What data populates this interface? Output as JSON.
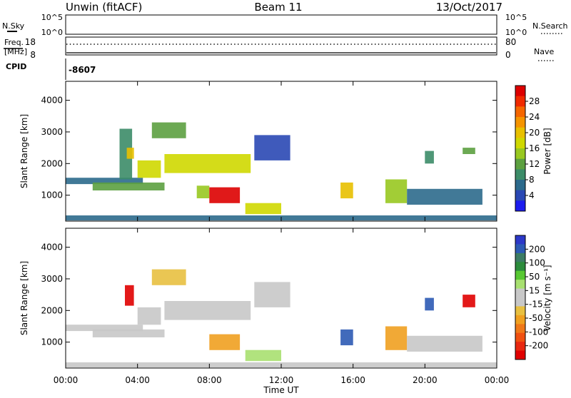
{
  "header": {
    "radar_name": "Unwin (fitACF)",
    "beam": "Beam 11",
    "date": "13/Oct/2017"
  },
  "strip_panels": {
    "nsky_label": "N.Sky",
    "nsky_ticks": [
      "10^5",
      "10^0"
    ],
    "nsearch_label": "N.Search",
    "nsearch_ticks": [
      "10^5",
      "10^0"
    ],
    "freq_label_line1": "Freq.",
    "freq_label_line2": "[MHz]",
    "freq_ticks": [
      "18",
      "8"
    ],
    "nave_label": "Nave",
    "nave_ticks": [
      "80",
      "0"
    ],
    "cpid_label": "CPID",
    "cpid_value": "-8607"
  },
  "power_colorbar": {
    "label": "Power [dB]",
    "ticks": [
      "28",
      "24",
      "20",
      "16",
      "12",
      "8",
      "4"
    ],
    "colors": [
      "#dd0000",
      "#f02a00",
      "#f56600",
      "#f59400",
      "#e8c000",
      "#cfd800",
      "#98c820",
      "#5ca040",
      "#3c8c68",
      "#2c6a8c",
      "#2a48b4",
      "#1c1cee"
    ]
  },
  "velocity_colorbar": {
    "label": "Velocity [m s⁻¹]",
    "ticks": [
      "200",
      "100",
      "50",
      "15",
      "-15",
      "-50",
      "-100",
      "-200"
    ],
    "colors": [
      "#2c38c8",
      "#2c5ab4",
      "#3c7c64",
      "#2c8c3c",
      "#58c832",
      "#a8e070",
      "#c8c8c8",
      "#c8c8c8",
      "#e8c040",
      "#f0a020",
      "#f07818",
      "#f05010",
      "#e82810",
      "#e00000"
    ]
  },
  "x_axis": {
    "label": "Time UT",
    "ticks": [
      "00:00",
      "04:00",
      "08:00",
      "12:00",
      "16:00",
      "20:00",
      "00:00"
    ]
  },
  "chart_data": [
    {
      "type": "heatmap",
      "title": "",
      "xlabel": "",
      "ylabel": "Slant Range [km]",
      "xlim": [
        0,
        24
      ],
      "ylim": [
        180,
        4600
      ],
      "yticks": [
        "1000",
        "2000",
        "3000",
        "4000"
      ],
      "colorbar_label": "Power [dB]",
      "colorbar_range": [
        2,
        30
      ],
      "echo_regions": [
        {
          "t_start": 0.0,
          "t_end": 4.3,
          "range_start": 1350,
          "range_end": 1550,
          "value": 9
        },
        {
          "t_start": 1.5,
          "t_end": 5.5,
          "range_start": 1150,
          "range_end": 1400,
          "value": 12
        },
        {
          "t_start": 3.0,
          "t_end": 3.7,
          "range_start": 1500,
          "range_end": 3100,
          "value": 10
        },
        {
          "t_start": 3.4,
          "t_end": 3.8,
          "range_start": 2150,
          "range_end": 2500,
          "value": 20
        },
        {
          "t_start": 4.0,
          "t_end": 5.3,
          "range_start": 1550,
          "range_end": 2100,
          "value": 17
        },
        {
          "t_start": 4.8,
          "t_end": 6.7,
          "range_start": 2800,
          "range_end": 3300,
          "value": 13
        },
        {
          "t_start": 5.5,
          "t_end": 10.3,
          "range_start": 1700,
          "range_end": 2300,
          "value": 17
        },
        {
          "t_start": 7.3,
          "t_end": 8.0,
          "range_start": 900,
          "range_end": 1300,
          "value": 15
        },
        {
          "t_start": 8.0,
          "t_end": 9.7,
          "range_start": 750,
          "range_end": 1250,
          "value": 29
        },
        {
          "t_start": 10.0,
          "t_end": 12.0,
          "range_start": 400,
          "range_end": 750,
          "value": 18
        },
        {
          "t_start": 10.5,
          "t_end": 12.5,
          "range_start": 2100,
          "range_end": 2900,
          "value": 6
        },
        {
          "t_start": 15.3,
          "t_end": 16.0,
          "range_start": 900,
          "range_end": 1400,
          "value": 19
        },
        {
          "t_start": 17.8,
          "t_end": 19.0,
          "range_start": 750,
          "range_end": 1500,
          "value": 15
        },
        {
          "t_start": 19.0,
          "t_end": 23.2,
          "range_start": 700,
          "range_end": 1200,
          "value": 9
        },
        {
          "t_start": 20.0,
          "t_end": 20.5,
          "range_start": 2000,
          "range_end": 2400,
          "value": 11
        },
        {
          "t_start": 22.1,
          "t_end": 22.8,
          "range_start": 2300,
          "range_end": 2500,
          "value": 13
        },
        {
          "t_start": 0.0,
          "t_end": 24.0,
          "range_start": 200,
          "range_end": 360,
          "value": 7
        }
      ]
    },
    {
      "type": "heatmap",
      "title": "",
      "xlabel": "Time UT",
      "ylabel": "Slant Range [km]",
      "xlim": [
        0,
        24
      ],
      "ylim": [
        180,
        4600
      ],
      "yticks": [
        "1000",
        "2000",
        "3000",
        "4000"
      ],
      "colorbar_label": "Velocity [m s⁻¹]",
      "colorbar_range": [
        -200,
        200
      ],
      "echo_regions": [
        {
          "t_start": 0.0,
          "t_end": 4.3,
          "range_start": 1350,
          "range_end": 1550,
          "value": 0
        },
        {
          "t_start": 1.5,
          "t_end": 5.5,
          "range_start": 1150,
          "range_end": 1400,
          "value": -20
        },
        {
          "t_start": 3.3,
          "t_end": 3.8,
          "range_start": 2150,
          "range_end": 2800,
          "value": -200
        },
        {
          "t_start": 4.0,
          "t_end": 5.3,
          "range_start": 1550,
          "range_end": 2100,
          "value": 0
        },
        {
          "t_start": 4.8,
          "t_end": 6.7,
          "range_start": 2800,
          "range_end": 3300,
          "value": -30
        },
        {
          "t_start": 5.5,
          "t_end": 10.3,
          "range_start": 1700,
          "range_end": 2300,
          "value": -20
        },
        {
          "t_start": 8.0,
          "t_end": 9.7,
          "range_start": 750,
          "range_end": 1250,
          "value": -80
        },
        {
          "t_start": 10.0,
          "t_end": 12.0,
          "range_start": 400,
          "range_end": 750,
          "value": 40
        },
        {
          "t_start": 10.5,
          "t_end": 12.5,
          "range_start": 2100,
          "range_end": 2900,
          "value": -10
        },
        {
          "t_start": 15.3,
          "t_end": 16.0,
          "range_start": 900,
          "range_end": 1400,
          "value": 150
        },
        {
          "t_start": 17.8,
          "t_end": 19.0,
          "range_start": 750,
          "range_end": 1500,
          "value": -60
        },
        {
          "t_start": 19.0,
          "t_end": 23.2,
          "range_start": 700,
          "range_end": 1200,
          "value": 0
        },
        {
          "t_start": 20.0,
          "t_end": 20.5,
          "range_start": 2000,
          "range_end": 2400,
          "value": 150
        },
        {
          "t_start": 22.1,
          "t_end": 22.8,
          "range_start": 2100,
          "range_end": 2500,
          "value": -200
        },
        {
          "t_start": 0.0,
          "t_end": 24.0,
          "range_start": 200,
          "range_end": 360,
          "value": -20
        }
      ]
    }
  ]
}
